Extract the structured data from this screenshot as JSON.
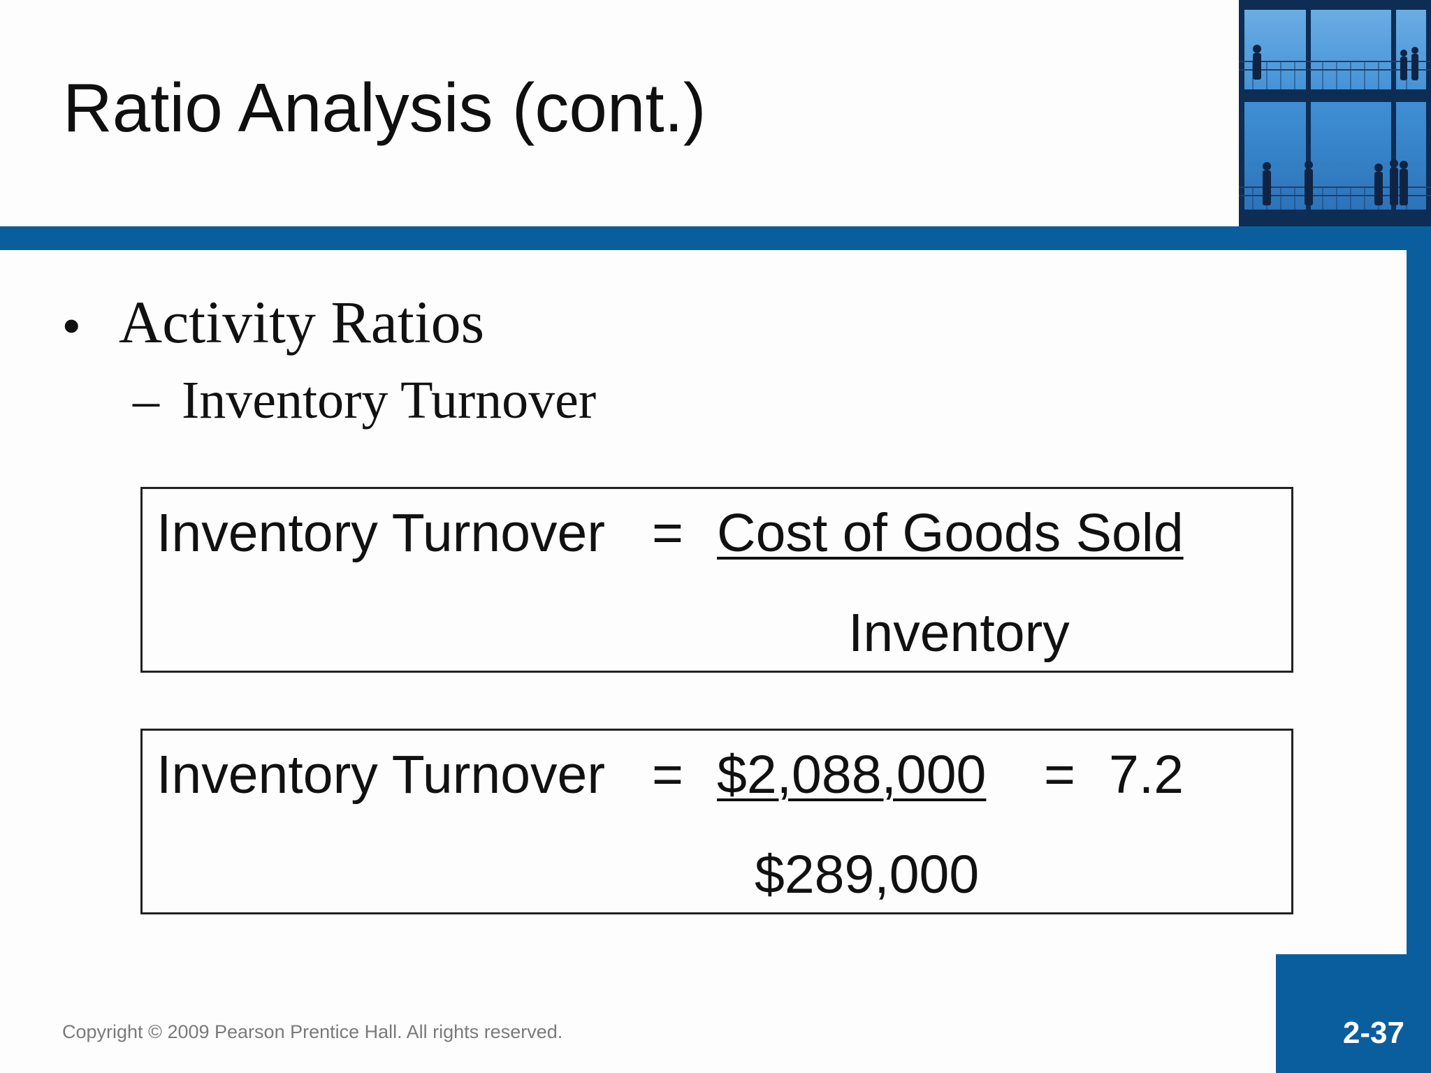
{
  "slide": {
    "title": "Ratio Analysis (cont.)",
    "bullet_symbol": "•",
    "bullet_text": "Activity Ratios",
    "sub_dash": "–",
    "sub_text": "Inventory Turnover"
  },
  "formula_general": {
    "lhs": "Inventory Turnover",
    "equals": "=",
    "numerator": "Cost of Goods Sold",
    "denominator": "Inventory"
  },
  "formula_numeric": {
    "lhs": "Inventory Turnover",
    "equals": "=",
    "numerator": "$2,088,000",
    "equals2": "=",
    "result": "7.2",
    "denominator": "$289,000"
  },
  "footer": {
    "copyright": "Copyright © 2009 Pearson Prentice Hall. All rights reserved.",
    "page_number": "2-37"
  },
  "colors": {
    "accent_blue": "#0a5e9e"
  }
}
